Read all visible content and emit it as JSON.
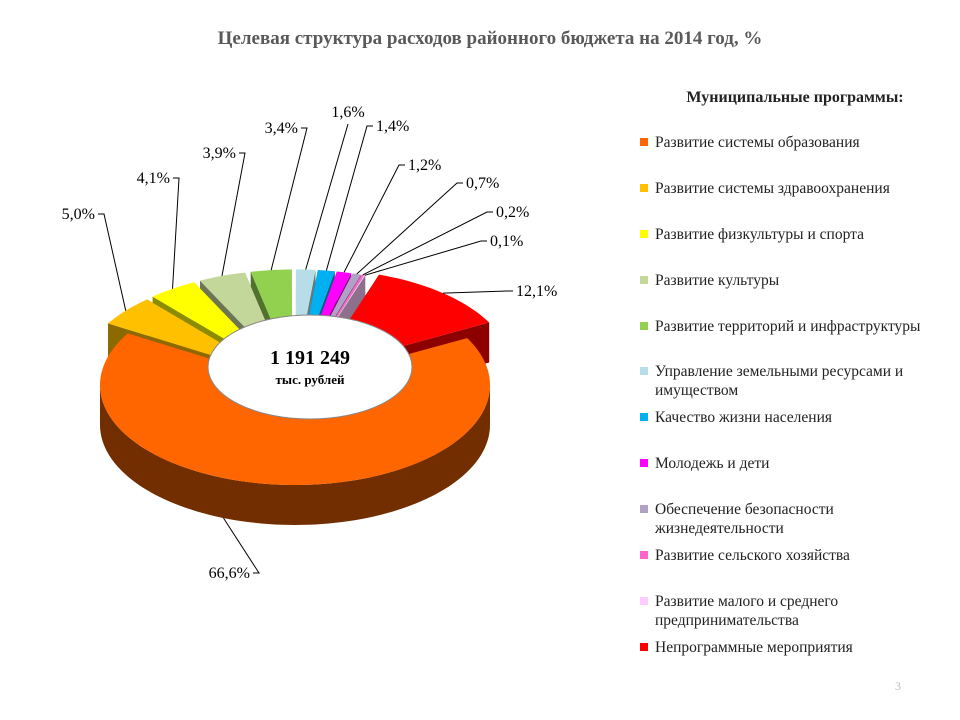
{
  "chart_data": {
    "type": "pie3d",
    "title": "Целевая структура расходов районного бюджета на 2014 год, %",
    "center_value": "1 191 249",
    "center_unit": "тыс. рублей",
    "legend_title": "Муниципальные программы:",
    "legend": "right",
    "page_number": "3",
    "categories": [
      "Развитие системы образования",
      "Развитие системы здравоохранения",
      "Развитие физкультуры и спорта",
      "Развитие культуры",
      "Развитие территорий и инфраструктуры",
      "Управление земельными ресурсами и имуществом",
      "Качество жизни населения",
      "Молодежь и дети",
      "Обеспечение безопасности жизнедеятельности",
      "Развитие сельского хозяйства",
      "Развитие малого и среднего предпринимательства",
      "Непрограммные мероприятия"
    ],
    "values": [
      66.6,
      5.0,
      4.1,
      3.9,
      3.4,
      1.6,
      1.4,
      1.2,
      0.7,
      0.2,
      0.1,
      12.1
    ],
    "value_labels": [
      "66,6%",
      "5,0%",
      "4,1%",
      "3,9%",
      "3,4%",
      "1,6%",
      "1,4%",
      "1,2%",
      "0,7%",
      "0,2%",
      "0,1%",
      "12,1%"
    ],
    "colors": [
      "#ff6600",
      "#ffc000",
      "#ffff00",
      "#c4d79b",
      "#92d050",
      "#b7dee8",
      "#00b0f0",
      "#ff00ff",
      "#b2a1c7",
      "#ff66cc",
      "#ffccff",
      "#ff0000"
    ]
  }
}
